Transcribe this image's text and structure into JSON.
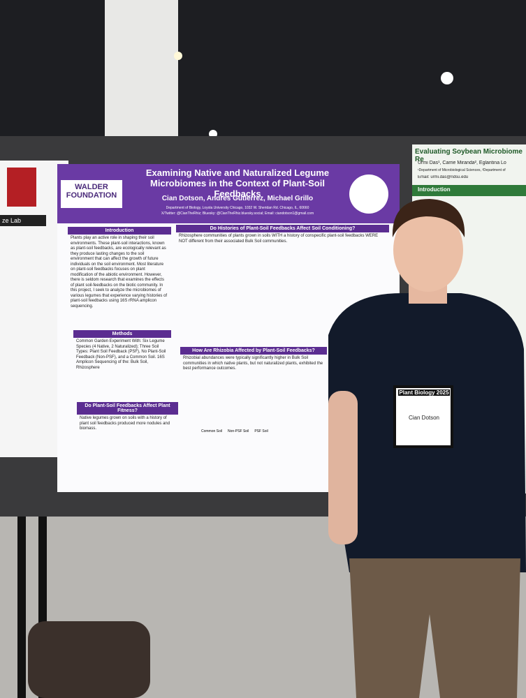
{
  "main_poster": {
    "logo": "WALDER FOUNDATION",
    "title": "Examining Native and Naturalized Legume Microbiomes in the Context of Plant-Soil Feedbacks",
    "authors": "Cian Dotson, Andres Gutierrez, Michael Grillo",
    "affiliation": "Department of Biology, Loyola University Chicago, 1032 W. Sheridan Rd. Chicago, IL, 60660",
    "contact": "X/Twitter: @CianTheRhiz; Bluesky: @CianTheRhiz.bluesky.social; Email: ciandotson1@gmail.com",
    "sections": [
      {
        "heading": "Introduction",
        "body": "Plants play an active role in shaping their soil environments. These plant-soil interactions, known as plant-soil feedbacks, are ecologically relevant as they produce lasting changes to the soil environment that can affect the growth of future individuals on the soil environment. Most literature on plant-soil feedbacks focuses on plant modification of the abiotic environment. However, there is seldom research that examines the effects of plant soil-feedbacks on the biotic community. In this project, I seek to analyze the microbiomes of various legumes that experience varying histories of plant-soil feedbacks using 16S rRNA amplicon sequencing."
      },
      {
        "heading": "Methods",
        "body": "Common Garden Experiment With: Six Legume Species (4 Native, 2 Naturalized); Three Soil Types: Plant Soil Feedback (PSF), No Plant-Soil Feedback (Non-PSF), and a Common Soil. 16S Amplicon Sequencing of the: Bulk Soil, Rhizosphere"
      },
      {
        "heading": "Do Plant-Soil Feedbacks Affect Plant Fitness?",
        "body": "Native legumes grown on soils with a history of plant soil feedbacks produced more nodules and biomass."
      },
      {
        "heading": "Do Histories of Plant-Soil Feedbacks Affect Soil Conditioning?",
        "body": "Rhizosphere communities of plants grown in soils WITH a history of conspecific plant-soil feedbacks WERE NOT different from their associated Bulk Soil communities."
      },
      {
        "heading": "How Are Rhizobia Affected by Plant-Soil Feedbacks?",
        "body": "Rhizobial abundances were typically significantly higher in Bulk Soil communities in which native plants, but not naturalized plants, exhibited the best performance outcomes."
      }
    ],
    "legend": [
      "Common Soil",
      "Non-PSF Soil",
      "PSF Soil"
    ]
  },
  "right_poster": {
    "title": "Evaluating Soybean Microbiome Re",
    "authors": "Urmi Das¹, Carrie Miranda², Eglantina Lo",
    "affiliation": "¹Department of Microbiological Sciences, ²Department of",
    "email": "Email: urmi.das@ndsu.edu",
    "heading": "Introduction"
  },
  "left_poster": {
    "label": "ze Lab"
  },
  "badge": {
    "event": "Plant Biology 2025",
    "name": "Cian Dotson"
  }
}
